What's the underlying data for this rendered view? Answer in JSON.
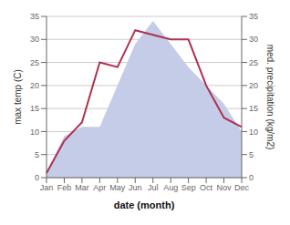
{
  "chart_data": {
    "type": "line",
    "categories": [
      "Jan",
      "Feb",
      "Mar",
      "Apr",
      "May",
      "Jun",
      "Jul",
      "Aug",
      "Sep",
      "Oct",
      "Nov",
      "Dec"
    ],
    "xlabel": "date (month)",
    "ylabel": "max temp (C)",
    "y2label": "med. precipitation (kg/m2)",
    "ylim": [
      0,
      35
    ],
    "yticks": [
      0,
      5,
      10,
      15,
      20,
      25,
      30,
      35
    ],
    "y2lim": [
      0,
      35
    ],
    "y2ticks": [
      0,
      5,
      10,
      15,
      20,
      25,
      30,
      35
    ],
    "grid": true,
    "series": [
      {
        "type": "area",
        "color": "#c5cce8",
        "axis": "y2",
        "values": [
          1,
          9,
          11,
          11,
          20,
          29,
          34,
          29,
          24,
          20,
          16,
          10
        ]
      },
      {
        "type": "line",
        "color": "#b03050",
        "values": [
          1,
          8,
          12,
          25,
          24,
          32,
          31,
          30,
          30,
          20,
          13,
          11
        ]
      }
    ]
  }
}
